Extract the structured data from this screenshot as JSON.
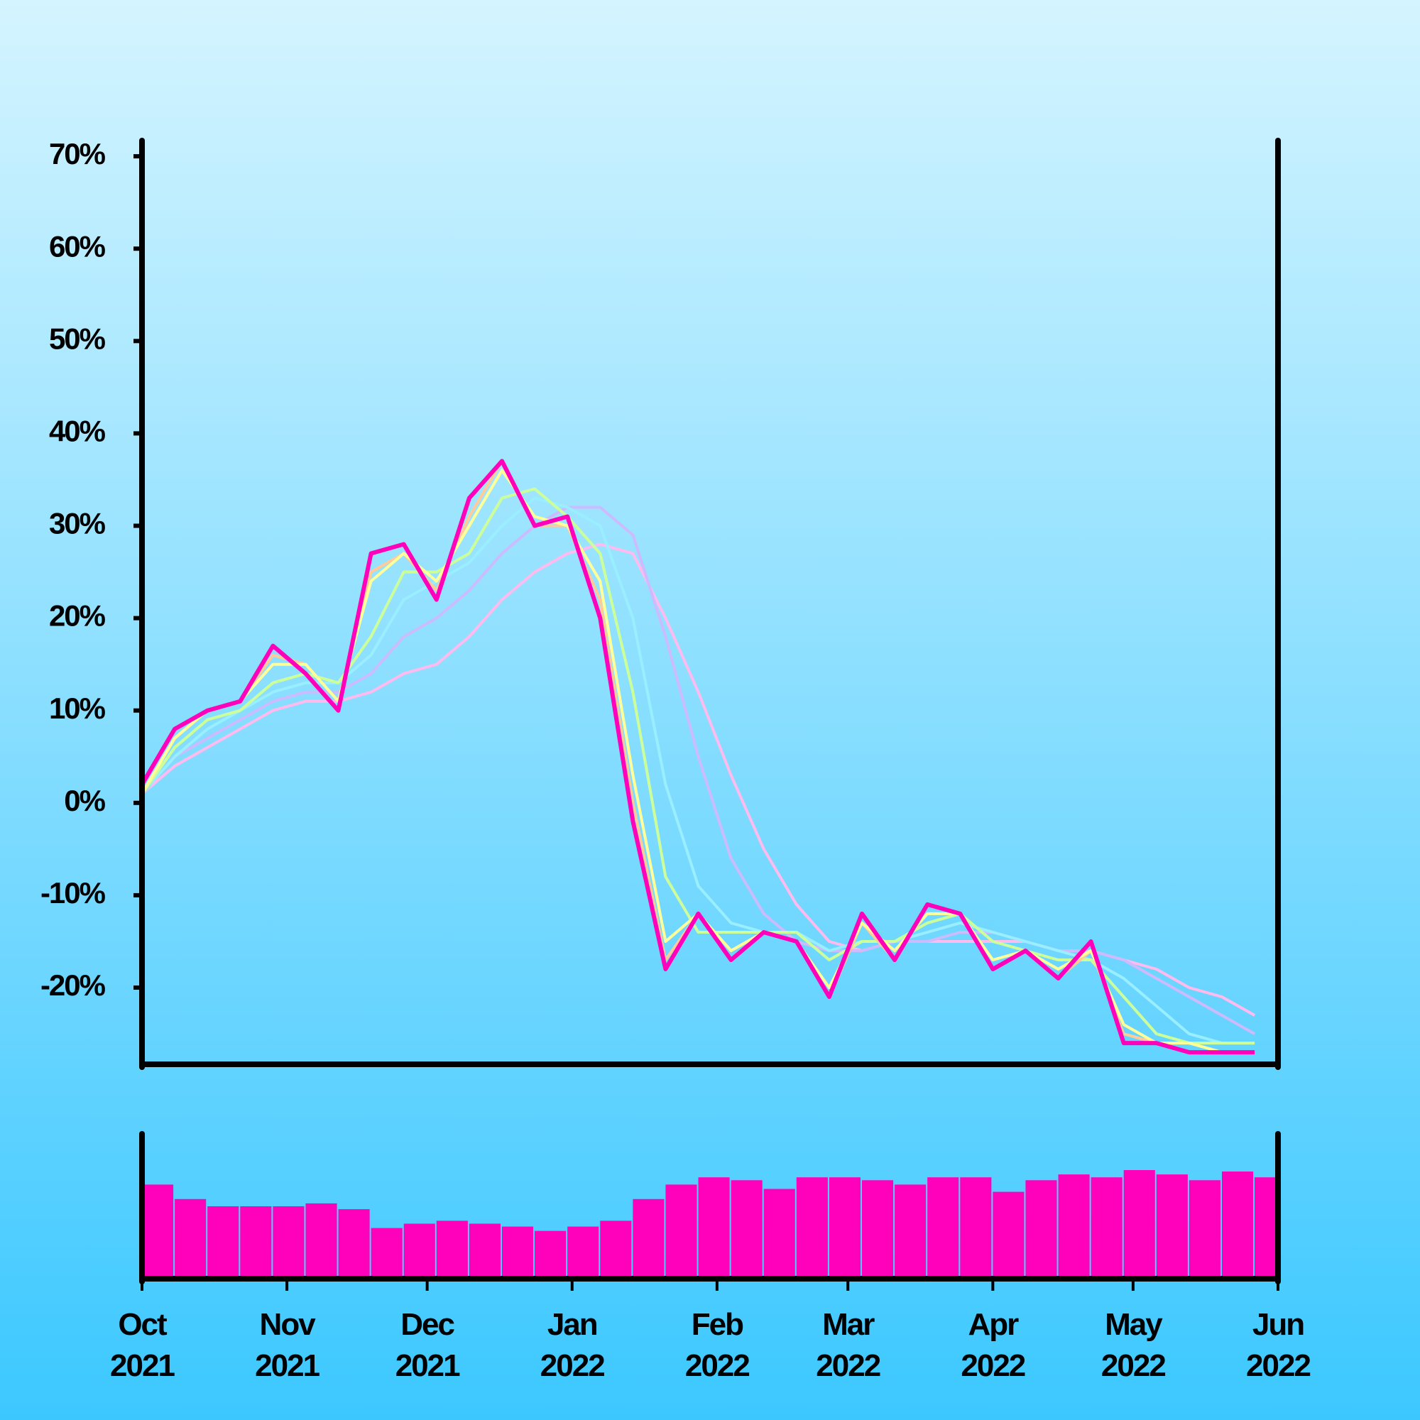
{
  "chart_data": [
    {
      "type": "line",
      "x": [
        "2021-10-01",
        "2021-10-08",
        "2021-10-15",
        "2021-10-22",
        "2021-10-29",
        "2021-11-05",
        "2021-11-12",
        "2021-11-19",
        "2021-11-26",
        "2021-12-03",
        "2021-12-10",
        "2021-12-17",
        "2021-12-24",
        "2021-12-31",
        "2022-01-07",
        "2022-01-14",
        "2022-01-21",
        "2022-01-28",
        "2022-02-04",
        "2022-02-11",
        "2022-02-18",
        "2022-02-25",
        "2022-03-04",
        "2022-03-11",
        "2022-03-18",
        "2022-03-25",
        "2022-04-01",
        "2022-04-08",
        "2022-04-15",
        "2022-04-22",
        "2022-04-29",
        "2022-05-06",
        "2022-05-13",
        "2022-05-20",
        "2022-05-27"
      ],
      "xlim": [
        "2021-10-01",
        "2022-06-01"
      ],
      "ylim": [
        -28.3,
        71.7
      ],
      "yticks": [
        {
          "value": -20,
          "label": "-20%"
        },
        {
          "value": -10,
          "label": "-10%"
        },
        {
          "value": 0,
          "label": "0%"
        },
        {
          "value": 10,
          "label": "10%"
        },
        {
          "value": 20,
          "label": "20%"
        },
        {
          "value": 30,
          "label": "30%"
        },
        {
          "value": 40,
          "label": "40%"
        },
        {
          "value": 50,
          "label": "50%"
        },
        {
          "value": 60,
          "label": "60%"
        },
        {
          "value": 70,
          "label": "70%"
        }
      ],
      "series": [
        {
          "color": "#ffbbee",
          "values": [
            1,
            4,
            6,
            8,
            10,
            11,
            11,
            12,
            14,
            15,
            18,
            22,
            25,
            27,
            28,
            27,
            20,
            12,
            3,
            -5,
            -11,
            -15,
            -16,
            -15,
            -15,
            -15,
            -15,
            -15,
            -16,
            -16,
            -17,
            -18,
            -20,
            -21,
            -23
          ]
        },
        {
          "color": "#ccbbff",
          "values": [
            1,
            5,
            7,
            9,
            11,
            12,
            12,
            14,
            18,
            20,
            23,
            27,
            30,
            32,
            32,
            29,
            18,
            5,
            -6,
            -12,
            -15,
            -16,
            -16,
            -15,
            -15,
            -14,
            -14,
            -15,
            -16,
            -16,
            -17,
            -19,
            -21,
            -23,
            -25
          ]
        },
        {
          "color": "#99eeff",
          "values": [
            1,
            5,
            8,
            10,
            12,
            13,
            13,
            16,
            22,
            24,
            26,
            30,
            33,
            32,
            30,
            20,
            2,
            -9,
            -13,
            -14,
            -14,
            -16,
            -15,
            -15,
            -14,
            -13,
            -14,
            -15,
            -16,
            -17,
            -19,
            -22,
            -25,
            -26,
            -26
          ]
        },
        {
          "color": "#ccff99",
          "values": [
            1,
            6,
            9,
            10,
            13,
            14,
            13,
            18,
            25,
            25,
            27,
            33,
            34,
            31,
            27,
            12,
            -8,
            -14,
            -14,
            -14,
            -14,
            -17,
            -15,
            -15,
            -13,
            -12,
            -15,
            -16,
            -17,
            -17,
            -21,
            -25,
            -26,
            -26,
            -26
          ]
        },
        {
          "color": "#ffcc99",
          "values": [
            1,
            7,
            10,
            11,
            16,
            15,
            11,
            25,
            27,
            23,
            31,
            37,
            30,
            30,
            22,
            0,
            -17,
            -12,
            -16,
            -14,
            -15,
            -21,
            -13,
            -17,
            -11,
            -12,
            -18,
            -16,
            -19,
            -16,
            -25,
            -26,
            -27,
            -27,
            -27
          ]
        },
        {
          "color": "#ffff99",
          "values": [
            1,
            7,
            10,
            11,
            15,
            15,
            11,
            24,
            27,
            24,
            30,
            36,
            31,
            30,
            24,
            3,
            -15,
            -12,
            -16,
            -14,
            -15,
            -20,
            -13,
            -16,
            -12,
            -12,
            -17,
            -16,
            -18,
            -16,
            -24,
            -26,
            -26,
            -27,
            -27
          ]
        },
        {
          "color": "#ff00bb",
          "values": [
            2,
            8,
            10,
            11,
            17,
            14,
            10,
            27,
            28,
            22,
            33,
            37,
            30,
            31,
            20,
            -2,
            -18,
            -12,
            -17,
            -14,
            -15,
            -21,
            -12,
            -17,
            -11,
            -12,
            -18,
            -16,
            -19,
            -15,
            -26,
            -26,
            -27,
            -27,
            -27
          ]
        }
      ]
    },
    {
      "type": "bar",
      "x": [
        "2021-10-01",
        "2021-10-08",
        "2021-10-15",
        "2021-10-22",
        "2021-10-29",
        "2021-11-05",
        "2021-11-12",
        "2021-11-19",
        "2021-11-26",
        "2021-12-03",
        "2021-12-10",
        "2021-12-17",
        "2021-12-24",
        "2021-12-31",
        "2022-01-07",
        "2022-01-14",
        "2022-01-21",
        "2022-01-28",
        "2022-02-04",
        "2022-02-11",
        "2022-02-18",
        "2022-02-25",
        "2022-03-04",
        "2022-03-11",
        "2022-03-18",
        "2022-03-25",
        "2022-04-01",
        "2022-04-08",
        "2022-04-15",
        "2022-04-22",
        "2022-04-29",
        "2022-05-06",
        "2022-05-13",
        "2022-05-20",
        "2022-05-27"
      ],
      "xlim": [
        "2021-10-01",
        "2022-06-01"
      ],
      "ylim": [
        0,
        100
      ],
      "color": "#ff00bb",
      "values": [
        65,
        55,
        50,
        50,
        50,
        52,
        48,
        35,
        38,
        40,
        38,
        36,
        33,
        36,
        40,
        55,
        65,
        70,
        68,
        62,
        70,
        70,
        68,
        65,
        70,
        70,
        60,
        68,
        72,
        70,
        75,
        72,
        68,
        74,
        70
      ],
      "xticks": [
        {
          "value": "2021-10-01",
          "label": "Oct 2021"
        },
        {
          "value": "2021-11-01",
          "label": "Nov 2021"
        },
        {
          "value": "2021-12-01",
          "label": "Dec 2021"
        },
        {
          "value": "2022-01-01",
          "label": "Jan 2022"
        },
        {
          "value": "2022-02-01",
          "label": "Feb 2022"
        },
        {
          "value": "2022-03-01",
          "label": "Mar 2022"
        },
        {
          "value": "2022-04-01",
          "label": "Apr 2022"
        },
        {
          "value": "2022-05-01",
          "label": "May 2022"
        },
        {
          "value": "2022-06-01",
          "label": "Jun 2022"
        }
      ]
    }
  ]
}
